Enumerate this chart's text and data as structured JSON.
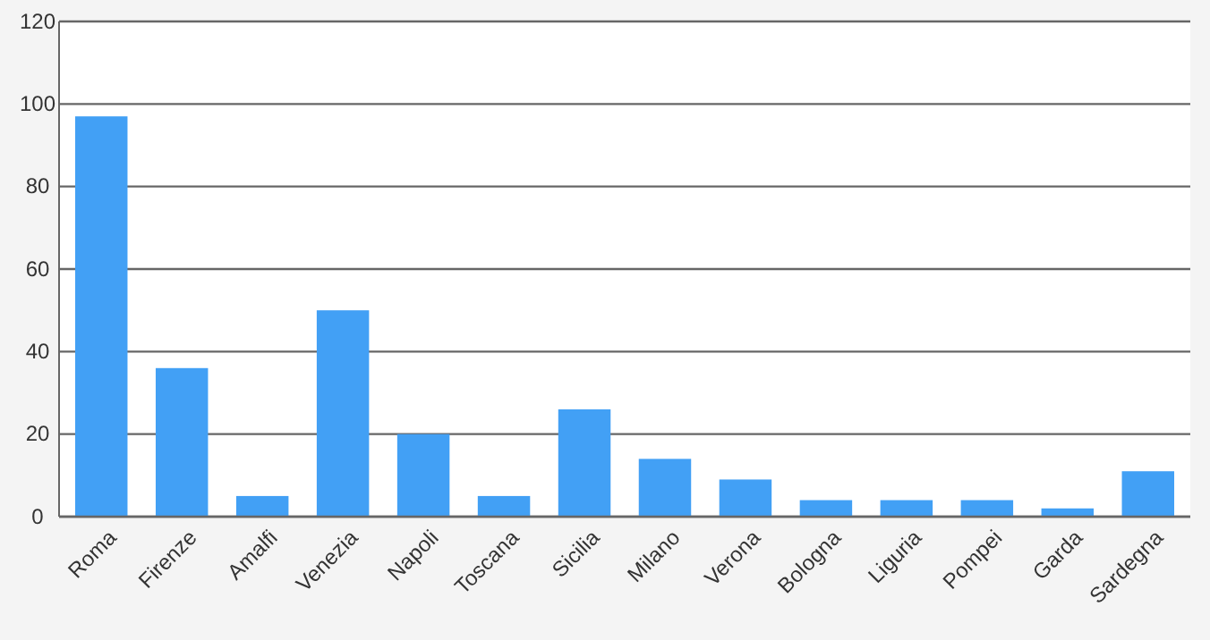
{
  "chart_data": {
    "type": "bar",
    "categories": [
      "Roma",
      "Firenze",
      "Amalfi",
      "Venezia",
      "Napoli",
      "Toscana",
      "Sicilia",
      "Milano",
      "Verona",
      "Bologna",
      "Liguria",
      "Pompei",
      "Garda",
      "Sardegna"
    ],
    "values": [
      97,
      36,
      5,
      50,
      20,
      5,
      26,
      14,
      9,
      4,
      4,
      4,
      2,
      11
    ],
    "color": "#42a0f5",
    "ylim": [
      0,
      120
    ],
    "yticks": [
      0,
      20,
      40,
      60,
      80,
      100,
      120
    ],
    "grid": "y"
  }
}
